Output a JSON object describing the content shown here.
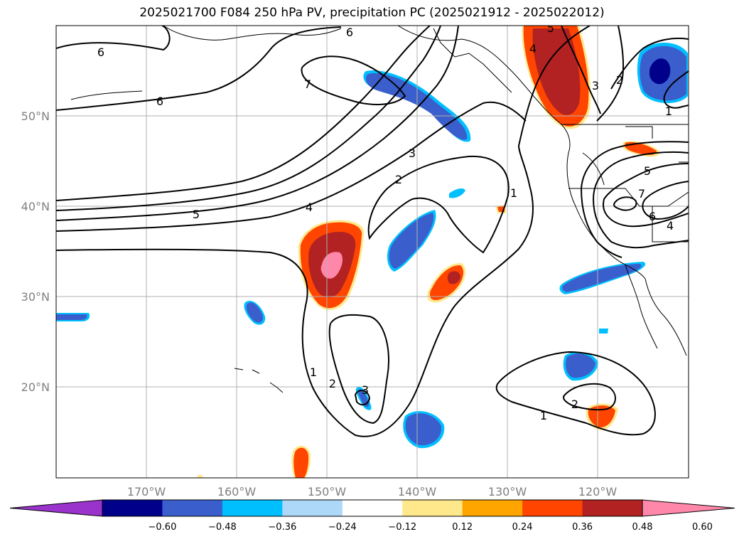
{
  "title": "2025021700 F084 250 hPa PV, precipitation PC (2025021912 - 2025022012)",
  "map": {
    "projection": "cylindrical",
    "lon_range": [
      -180,
      -110
    ],
    "lat_range": [
      10,
      60
    ],
    "lat_labels": [
      "50°N",
      "40°N",
      "30°N",
      "20°N"
    ],
    "lon_labels": [
      "170°W",
      "160°W",
      "150°W",
      "140°W",
      "130°W",
      "120°W"
    ],
    "contour_variable": "250 hPa PV",
    "contour_labels": [
      "6",
      "6",
      "6",
      "7",
      "5",
      "4",
      "3",
      "2",
      "1",
      "1",
      "2",
      "3",
      "1",
      "2",
      "7",
      "6",
      "5",
      "4",
      "3",
      "2",
      "1",
      "4",
      "5"
    ],
    "shading_variable": "precipitation PC"
  },
  "colorbar": {
    "tick_labels": [
      "−0.60",
      "−0.48",
      "−0.36",
      "−0.24",
      "−0.12",
      "0.12",
      "0.24",
      "0.36",
      "0.48",
      "0.60"
    ],
    "colors": [
      "#9933cc",
      "#00008b",
      "#3a5fcd",
      "#00bfff",
      "#add8f8",
      "#ffffff",
      "#ffe88c",
      "#ffa500",
      "#ff4500",
      "#b22222",
      "#ff88aa"
    ]
  }
}
